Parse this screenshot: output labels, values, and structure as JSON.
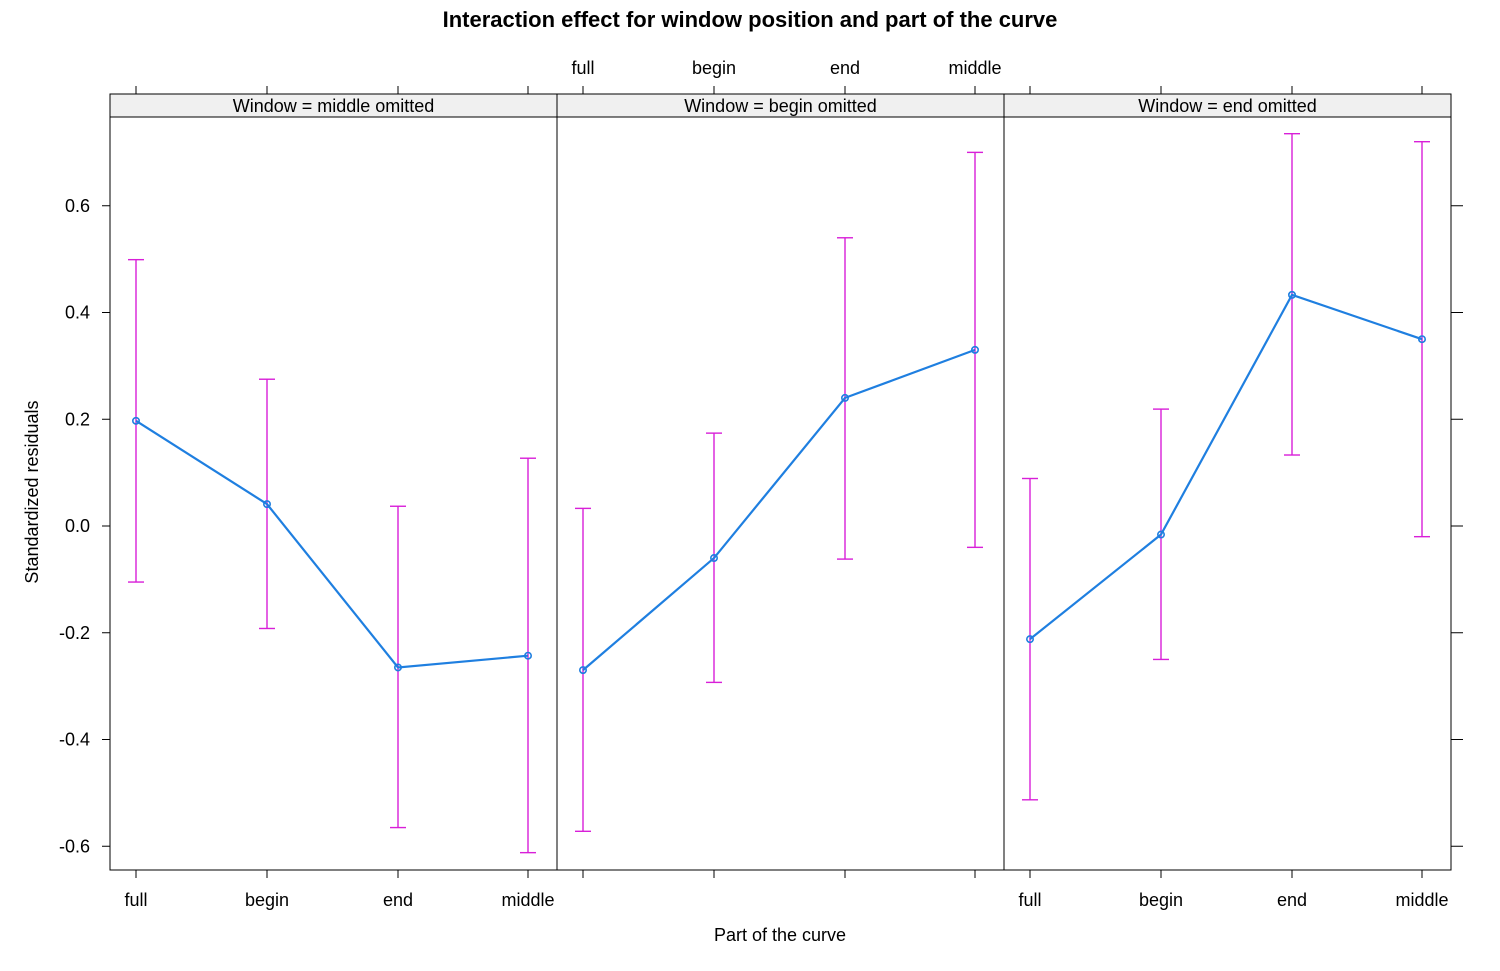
{
  "chart_data": {
    "type": "line",
    "title": "Interaction effect for window position and part of the curve",
    "xlabel": "Part of the curve",
    "ylabel": "Standardized residuals",
    "categories": [
      "full",
      "begin",
      "end",
      "middle"
    ],
    "y_ticks": [
      "0.6",
      "0.4",
      "0.2",
      "0.0",
      "-0.2",
      "-0.4",
      "-0.6"
    ],
    "ylim": [
      -0.64,
      0.77
    ],
    "line_color": "#1f7fe0",
    "errorbar_color": "#d81fd8",
    "strip_color": "#f0f0f0",
    "panels": [
      {
        "strip": "Window = middle omitted",
        "values": [
          0.197,
          0.041,
          -0.265,
          -0.243
        ],
        "lower": [
          -0.105,
          -0.192,
          -0.565,
          -0.612
        ],
        "upper": [
          0.499,
          0.275,
          0.037,
          0.127
        ]
      },
      {
        "strip": "Window = begin omitted",
        "values": [
          -0.27,
          -0.06,
          0.24,
          0.33
        ],
        "lower": [
          -0.572,
          -0.293,
          -0.062,
          -0.04
        ],
        "upper": [
          0.033,
          0.174,
          0.54,
          0.7
        ]
      },
      {
        "strip": "Window = end omitted",
        "values": [
          -0.212,
          -0.016,
          0.433,
          0.35
        ],
        "lower": [
          -0.513,
          -0.25,
          0.133,
          -0.02
        ],
        "upper": [
          0.089,
          0.219,
          0.735,
          0.72
        ]
      }
    ]
  }
}
